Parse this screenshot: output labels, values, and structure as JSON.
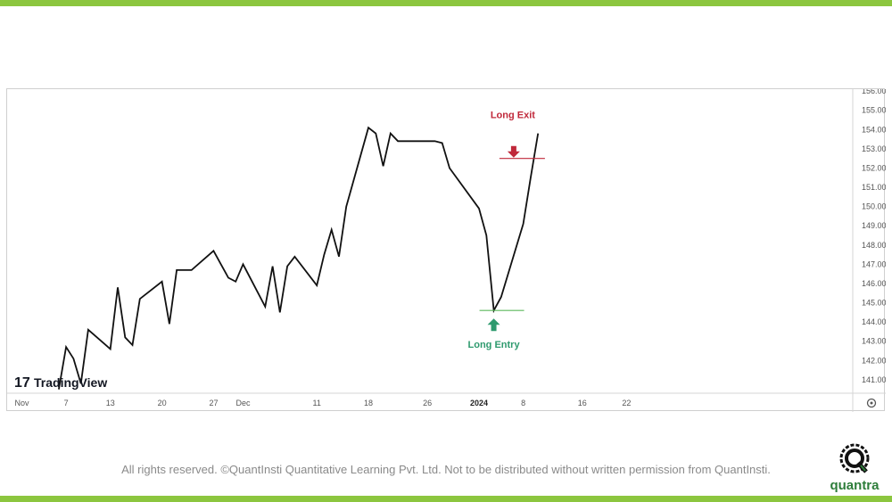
{
  "colors": {
    "accent_green": "#8cc63f",
    "line": "#111111",
    "exit": "#c0283a",
    "entry": "#2e9a6e",
    "entry_line": "#5cb85c",
    "axis_text": "#555555",
    "brand_green": "#2d7d3a"
  },
  "chart_data": {
    "type": "line",
    "x": [
      "2023-11-06",
      "2023-11-07",
      "2023-11-08",
      "2023-11-09",
      "2023-11-10",
      "2023-11-13",
      "2023-11-14",
      "2023-11-15",
      "2023-11-16",
      "2023-11-17",
      "2023-11-20",
      "2023-11-21",
      "2023-11-22",
      "2023-11-24",
      "2023-11-27",
      "2023-11-28",
      "2023-11-29",
      "2023-11-30",
      "2023-12-01",
      "2023-12-04",
      "2023-12-05",
      "2023-12-06",
      "2023-12-07",
      "2023-12-08",
      "2023-12-11",
      "2023-12-12",
      "2023-12-13",
      "2023-12-14",
      "2023-12-15",
      "2023-12-18",
      "2023-12-19",
      "2023-12-20",
      "2023-12-21",
      "2023-12-22",
      "2023-12-26",
      "2023-12-27",
      "2023-12-28",
      "2023-12-29",
      "2024-01-02",
      "2024-01-03",
      "2024-01-04",
      "2024-01-05",
      "2024-01-08",
      "2024-01-09",
      "2024-01-10"
    ],
    "series": [
      {
        "values": [
          140.5,
          142.7,
          142.1,
          140.8,
          143.6,
          142.6,
          145.8,
          143.2,
          142.8,
          145.2,
          146.1,
          143.9,
          146.7,
          146.7,
          147.7,
          147.0,
          146.3,
          146.1,
          147.0,
          144.8,
          146.9,
          144.5,
          146.9,
          147.4,
          145.9,
          147.5,
          148.8,
          147.4,
          150.0,
          154.1,
          153.8,
          152.1,
          153.8,
          153.4,
          153.4,
          153.4,
          153.3,
          152.0,
          149.9,
          148.5,
          144.6,
          145.3,
          149.1,
          151.5,
          153.8
        ]
      }
    ],
    "ylim": [
      140.3,
      156.1
    ],
    "yticks": [
      "141.00",
      "142.00",
      "143.00",
      "144.00",
      "145.00",
      "146.00",
      "147.00",
      "148.00",
      "149.00",
      "150.00",
      "151.00",
      "152.00",
      "153.00",
      "154.00",
      "155.00",
      "156.00"
    ],
    "xtick_labels": [
      {
        "date": "2023-11-01",
        "label": "Nov"
      },
      {
        "date": "2023-11-07",
        "label": "7"
      },
      {
        "date": "2023-11-13",
        "label": "13"
      },
      {
        "date": "2023-11-20",
        "label": "20"
      },
      {
        "date": "2023-11-27",
        "label": "27"
      },
      {
        "date": "2023-12-01",
        "label": "Dec"
      },
      {
        "date": "2023-12-11",
        "label": "11"
      },
      {
        "date": "2023-12-18",
        "label": "18"
      },
      {
        "date": "2023-12-26",
        "label": "26"
      },
      {
        "date": "2024-01-02",
        "label": "2024"
      },
      {
        "date": "2024-01-08",
        "label": "8"
      },
      {
        "date": "2024-01-16",
        "label": "16"
      },
      {
        "date": "2024-01-22",
        "label": "22"
      }
    ],
    "annotations": {
      "exit": {
        "label": "Long Exit",
        "date": "2024-01-09",
        "price": 152.5
      },
      "entry": {
        "label": "Long Entry",
        "date": "2024-01-04",
        "price": 144.6
      }
    },
    "watermark": "TradingView",
    "grid": false
  },
  "footer": {
    "text": "All rights reserved. ©QuantInsti Quantitative Learning Pvt. Ltd. Not to be distributed without written permission from QuantInsti."
  },
  "logo": {
    "text": "quantra"
  },
  "icons": {
    "settings": "gear-icon"
  }
}
